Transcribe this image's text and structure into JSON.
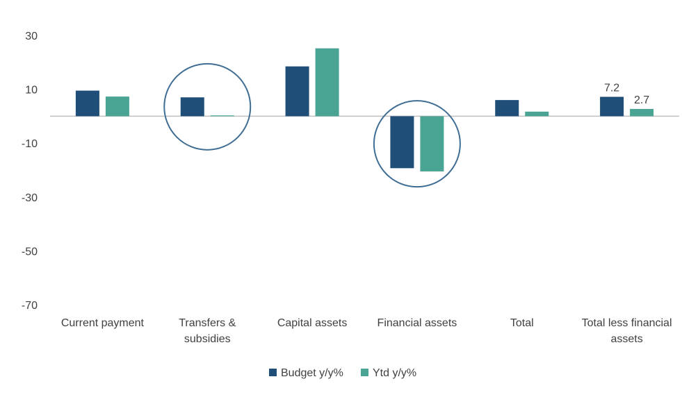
{
  "colors": {
    "budget": "#1f4e79",
    "ytd": "#4aa493",
    "axis": "#bfbfbf",
    "circle": "#3f6d93",
    "text": "#404040"
  },
  "chart_data": {
    "type": "bar",
    "categories": [
      [
        "Current payment"
      ],
      [
        "Transfers &",
        "subsidies"
      ],
      [
        "Capital assets"
      ],
      [
        "Financial assets"
      ],
      [
        "Total"
      ],
      [
        "Total less financial",
        "assets"
      ]
    ],
    "series": [
      {
        "name": "Budget y/y%",
        "values": [
          9.5,
          7.0,
          18.5,
          -19.3,
          6.0,
          7.2
        ]
      },
      {
        "name": "Ytd y/y%",
        "values": [
          7.3,
          0.3,
          25.2,
          -20.5,
          1.7,
          2.7
        ]
      }
    ],
    "data_labels": [
      {
        "category": 5,
        "series": 0,
        "text": "7.2"
      },
      {
        "category": 5,
        "series": 1,
        "text": "2.7"
      }
    ],
    "y_ticks": [
      30,
      10,
      -10,
      -30,
      -50,
      -70
    ],
    "ylim": [
      -70,
      30
    ],
    "grid": false,
    "legend_position": "bottom",
    "highlighted_categories": [
      1,
      3
    ],
    "title": "",
    "xlabel": "",
    "ylabel": ""
  }
}
